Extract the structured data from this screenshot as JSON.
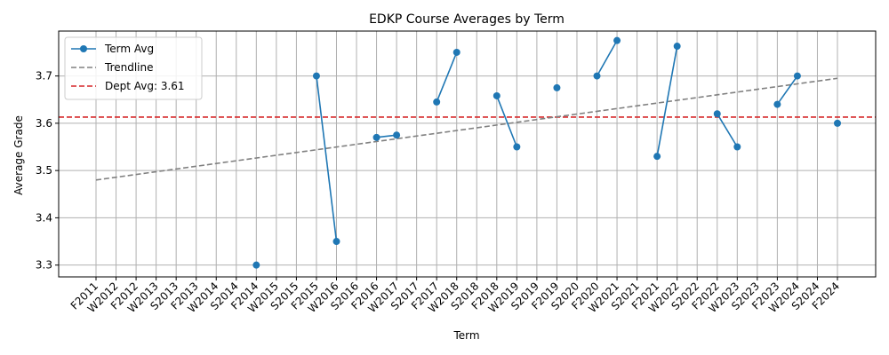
{
  "chart_data": {
    "type": "line",
    "title": "EDKP Course Averages by Term",
    "xlabel": "Term",
    "ylabel": "Average Grade",
    "categories": [
      "F2011",
      "W2012",
      "F2012",
      "W2013",
      "S2013",
      "F2013",
      "W2014",
      "S2014",
      "F2014",
      "W2015",
      "S2015",
      "F2015",
      "W2016",
      "S2016",
      "F2016",
      "W2017",
      "S2017",
      "F2017",
      "W2018",
      "S2018",
      "F2018",
      "W2019",
      "S2019",
      "F2019",
      "S2020",
      "F2020",
      "W2021",
      "S2021",
      "F2021",
      "W2022",
      "S2022",
      "F2022",
      "W2023",
      "S2023",
      "F2023",
      "W2024",
      "S2024",
      "F2024"
    ],
    "ylim": [
      3.275,
      3.795
    ],
    "yticks": [
      3.3,
      3.4,
      3.5,
      3.6,
      3.7
    ],
    "grid": true,
    "legend_position": "top-left",
    "series": [
      {
        "name": "Term Avg",
        "color": "#1f77b4",
        "style": "line-markers",
        "values": [
          null,
          null,
          null,
          null,
          null,
          null,
          null,
          null,
          3.3,
          null,
          null,
          3.7,
          3.35,
          null,
          3.57,
          3.575,
          null,
          3.645,
          3.75,
          null,
          3.658,
          3.55,
          null,
          3.675,
          null,
          3.7,
          3.775,
          null,
          3.53,
          3.763,
          null,
          3.62,
          3.55,
          null,
          3.64,
          3.7,
          null,
          3.6
        ]
      },
      {
        "name": "Trendline",
        "color": "#808080",
        "style": "dashed",
        "start": {
          "x": "F2011",
          "y": 3.48
        },
        "end": {
          "x": "F2024",
          "y": 3.695
        }
      }
    ],
    "reference_line": {
      "label": "Dept Avg: 3.61",
      "value": 3.613,
      "color": "#d62728",
      "style": "dashed"
    }
  }
}
